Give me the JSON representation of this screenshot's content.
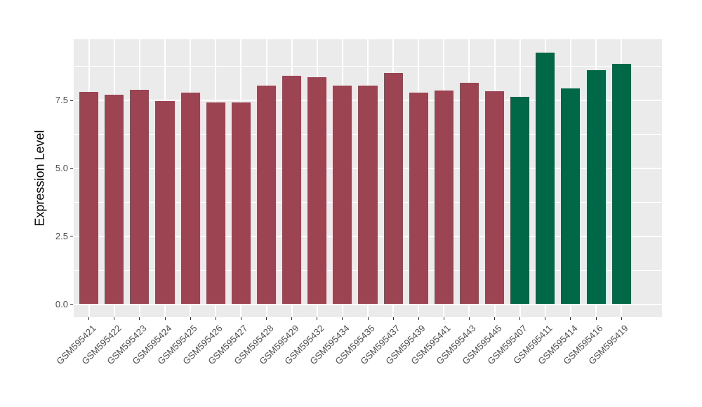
{
  "chart_data": {
    "type": "bar",
    "title": "",
    "xlabel": "",
    "ylabel": "Expression Level",
    "categories": [
      "GSM595421",
      "GSM595422",
      "GSM595423",
      "GSM595424",
      "GSM595425",
      "GSM595426",
      "GSM595427",
      "GSM595428",
      "GSM595429",
      "GSM595432",
      "GSM595434",
      "GSM595435",
      "GSM595437",
      "GSM595439",
      "GSM595441",
      "GSM595443",
      "GSM595445",
      "GSM595407",
      "GSM595411",
      "GSM595414",
      "GSM595416",
      "GSM595419"
    ],
    "values": [
      7.81,
      7.71,
      7.9,
      7.49,
      7.78,
      7.43,
      7.43,
      8.06,
      8.42,
      8.35,
      8.06,
      8.06,
      8.51,
      7.78,
      7.87,
      8.15,
      7.84,
      7.63,
      9.27,
      7.95,
      8.63,
      8.86
    ],
    "bar_groups": [
      "maroon",
      "maroon",
      "maroon",
      "maroon",
      "maroon",
      "maroon",
      "maroon",
      "maroon",
      "maroon",
      "maroon",
      "maroon",
      "maroon",
      "maroon",
      "maroon",
      "maroon",
      "maroon",
      "maroon",
      "green",
      "green",
      "green",
      "green",
      "green"
    ],
    "group_colors": {
      "maroon": "#9D4452",
      "green": "#006747"
    },
    "yticks": {
      "values": [
        0,
        2.5,
        5,
        7.5
      ],
      "labels": [
        "0.0",
        "2.5",
        "5.0",
        "7.5"
      ]
    },
    "minor_gridlines": [
      1.25,
      3.75,
      6.25,
      8.75
    ],
    "ylim": [
      0,
      9.76
    ],
    "legend": "none",
    "grid": "on",
    "styles": {
      "plot_bg": "#EBEBEB",
      "grid_color": "#FFFFFF",
      "axis_text_color": "#4D4D4D",
      "axis_title_color": "#000000",
      "tick_mark_color": "#333333"
    }
  }
}
